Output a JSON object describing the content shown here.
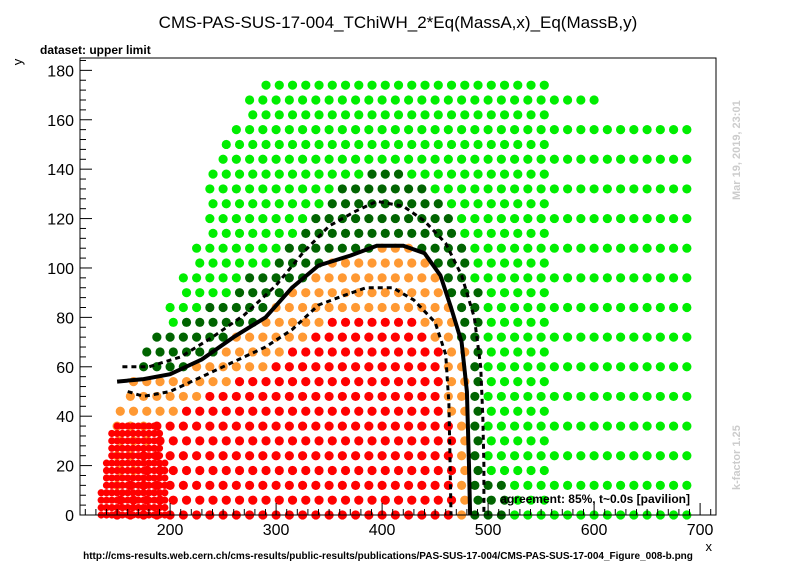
{
  "chart_data": {
    "type": "scatter",
    "title": "CMS-PAS-SUS-17-004_TChiWH_2*Eq(MassA,x)_Eq(MassB,y)",
    "subtitle": "dataset: upper limit",
    "xlabel": "x",
    "ylabel": "y",
    "xlim": [
      120,
      715
    ],
    "ylim": [
      0,
      185
    ],
    "xticks": [
      200,
      300,
      400,
      500,
      600,
      700
    ],
    "xtick_labels": [
      "200",
      "300",
      "400",
      "500",
      "600",
      "700"
    ],
    "yticks": [
      0,
      20,
      40,
      60,
      80,
      100,
      120,
      140,
      160,
      180
    ],
    "ytick_labels": [
      "0",
      "20",
      "40",
      "60",
      "80",
      "100",
      "120",
      "140",
      "160",
      "180"
    ],
    "grid": false,
    "annotation": "agreement: 85%, t~0.0s [pavilion]",
    "right_note_top": "Mar 19, 2019, 23:01",
    "right_note_bottom": "k-factor 1.25",
    "footer": "http://cms-results.web.cern.ch/cms-results/public-results/publications/PAS-SUS-17-004/CMS-PAS-SUS-17-004_Figure_008-b.png",
    "colors": {
      "excluded_strong": "#ff0000",
      "excluded": "#ff9933",
      "near": "#006400",
      "allowed": "#00ee00"
    },
    "series": [
      {
        "type": "line",
        "style": "solid",
        "points": [
          [
            150,
            54
          ],
          [
            175,
            55
          ],
          [
            200,
            57
          ],
          [
            230,
            63
          ],
          [
            260,
            72
          ],
          [
            290,
            80
          ],
          [
            315,
            92
          ],
          [
            340,
            101
          ],
          [
            370,
            105
          ],
          [
            395,
            109
          ],
          [
            420,
            109
          ],
          [
            440,
            106
          ],
          [
            455,
            97
          ],
          [
            465,
            84
          ],
          [
            475,
            70
          ],
          [
            480,
            50
          ],
          [
            482,
            20
          ],
          [
            483,
            0
          ]
        ]
      },
      {
        "type": "line",
        "style": "dashed",
        "points": [
          [
            155,
            60
          ],
          [
            180,
            60
          ],
          [
            210,
            64
          ],
          [
            240,
            72
          ],
          [
            270,
            81
          ],
          [
            300,
            93
          ],
          [
            325,
            106
          ],
          [
            350,
            117
          ],
          [
            375,
            123
          ],
          [
            395,
            127
          ],
          [
            420,
            125
          ],
          [
            440,
            119
          ],
          [
            460,
            110
          ],
          [
            475,
            97
          ],
          [
            487,
            80
          ],
          [
            493,
            60
          ],
          [
            495,
            40
          ],
          [
            496,
            20
          ],
          [
            496,
            0
          ]
        ]
      },
      {
        "type": "line",
        "style": "dashed",
        "points": [
          [
            160,
            50
          ],
          [
            175,
            48
          ],
          [
            200,
            50
          ],
          [
            230,
            56
          ],
          [
            260,
            62
          ],
          [
            290,
            68
          ],
          [
            315,
            75
          ],
          [
            340,
            85
          ],
          [
            365,
            89
          ],
          [
            385,
            92
          ],
          [
            410,
            92
          ],
          [
            430,
            87
          ],
          [
            450,
            78
          ],
          [
            460,
            65
          ],
          [
            463,
            45
          ],
          [
            464,
            25
          ],
          [
            465,
            0
          ]
        ]
      }
    ]
  }
}
